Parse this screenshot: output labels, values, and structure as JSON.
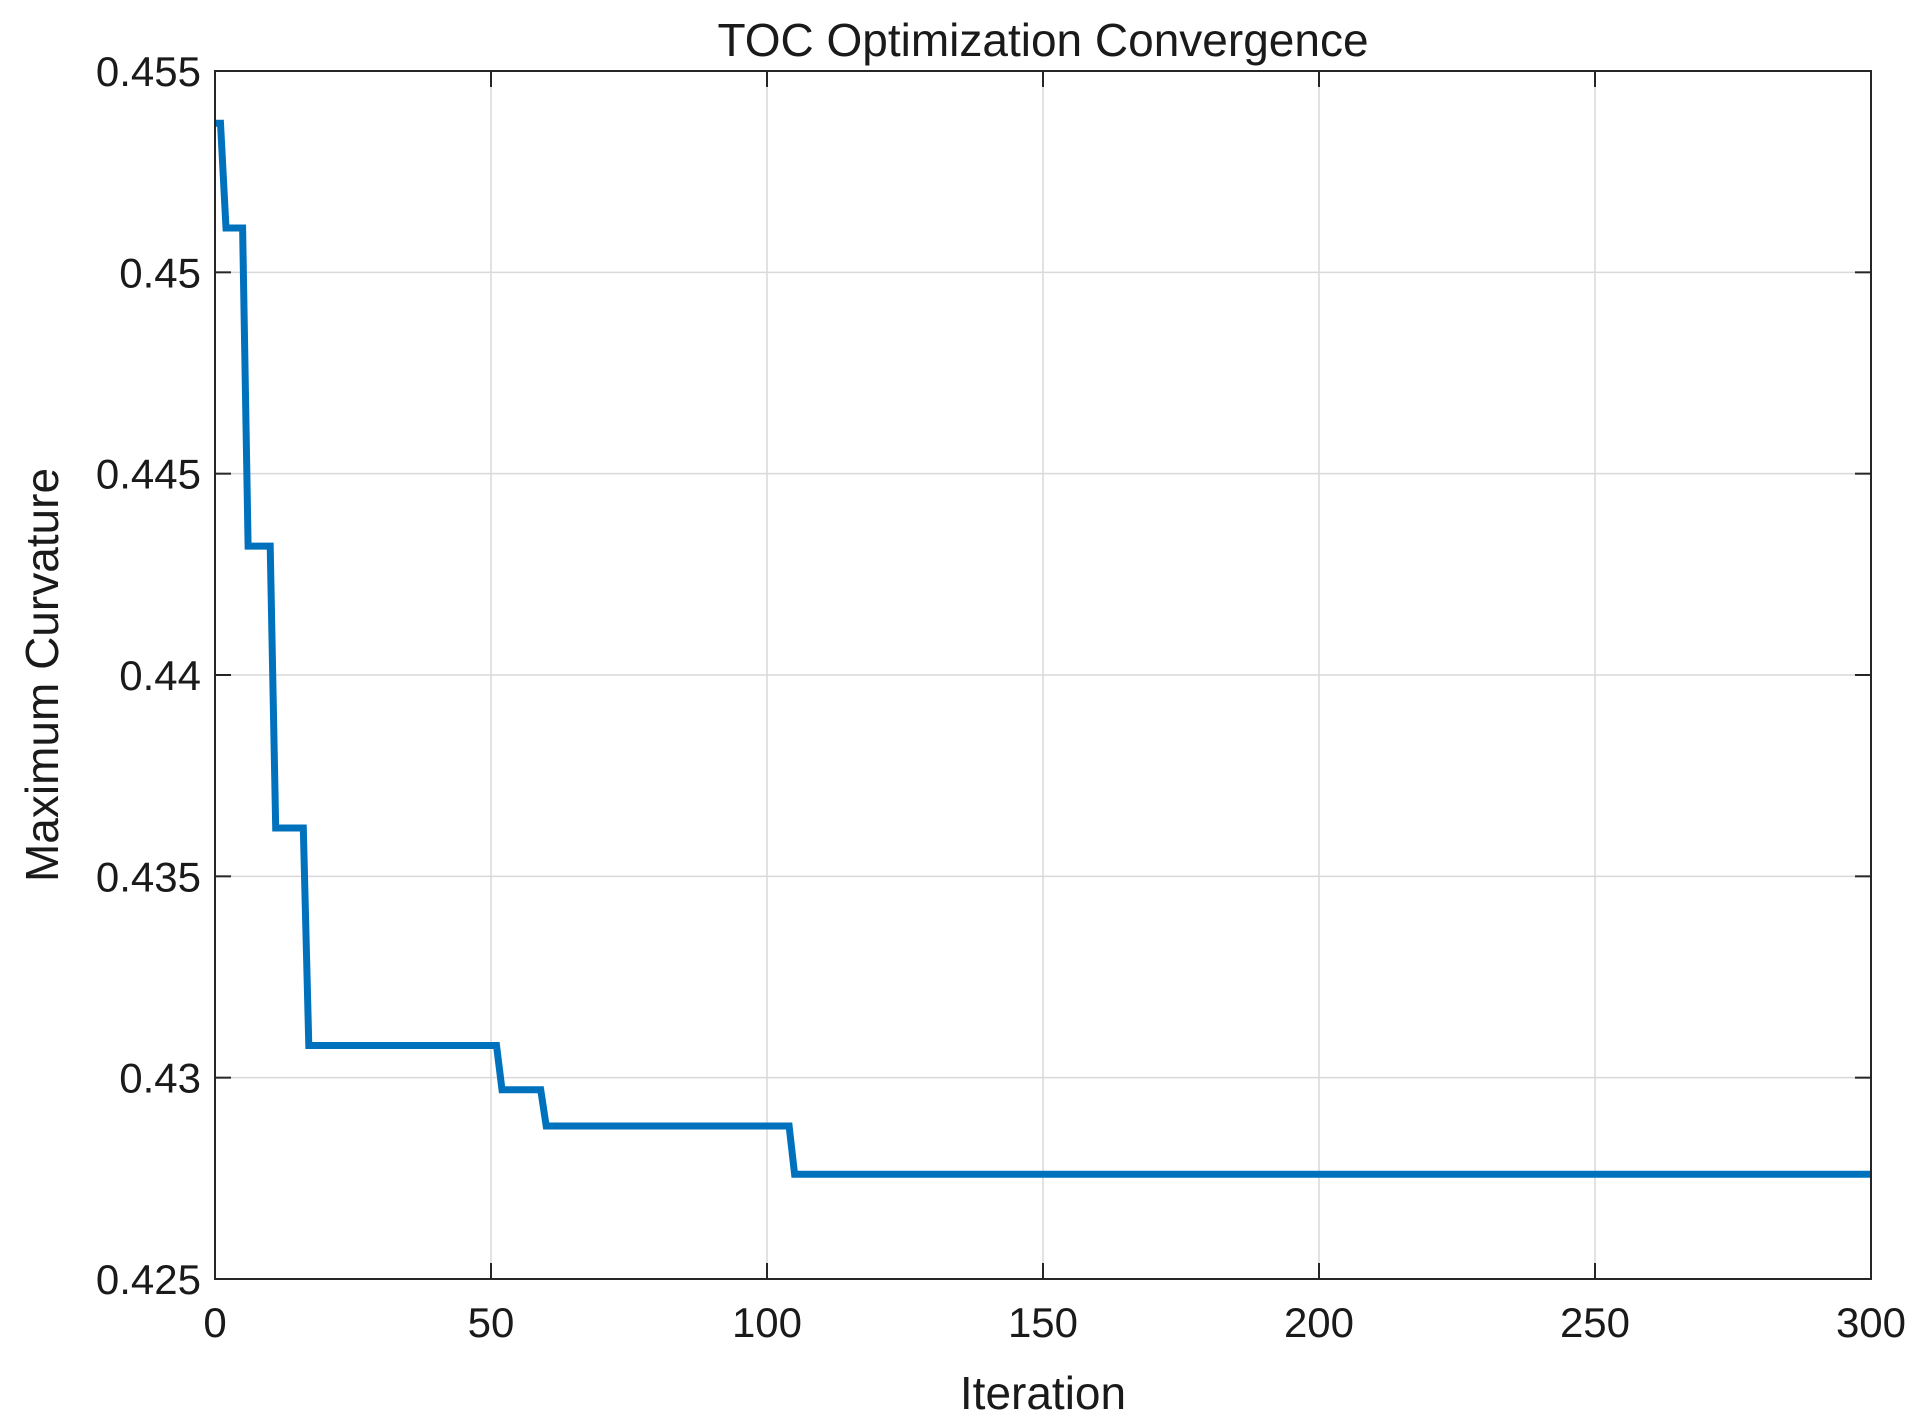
{
  "chart_data": {
    "type": "line",
    "title": "TOC Optimization Convergence",
    "xlabel": "Iteration",
    "ylabel": "Maximum Curvature",
    "xlim": [
      0,
      300
    ],
    "ylim": [
      0.425,
      0.455
    ],
    "xticks": [
      0,
      50,
      100,
      150,
      200,
      250,
      300
    ],
    "xtick_labels": [
      "0",
      "50",
      "100",
      "150",
      "200",
      "250",
      "300"
    ],
    "yticks": [
      0.425,
      0.43,
      0.435,
      0.44,
      0.445,
      0.45,
      0.455
    ],
    "ytick_labels": [
      "0.425",
      "0.43",
      "0.435",
      "0.44",
      "0.445",
      "0.45",
      "0.455"
    ],
    "grid": true,
    "series_color": "#0072BD",
    "series": [
      {
        "name": "",
        "step": true,
        "points": [
          [
            0,
            0.4537
          ],
          [
            1,
            0.4537
          ],
          [
            2,
            0.4511
          ],
          [
            5,
            0.4511
          ],
          [
            6,
            0.4432
          ],
          [
            10,
            0.4432
          ],
          [
            11,
            0.4362
          ],
          [
            16,
            0.4362
          ],
          [
            17,
            0.4308
          ],
          [
            51,
            0.4308
          ],
          [
            52,
            0.4297
          ],
          [
            59,
            0.4297
          ],
          [
            60,
            0.4288
          ],
          [
            104,
            0.4288
          ],
          [
            105,
            0.4276
          ],
          [
            300,
            0.4276
          ]
        ]
      }
    ]
  }
}
